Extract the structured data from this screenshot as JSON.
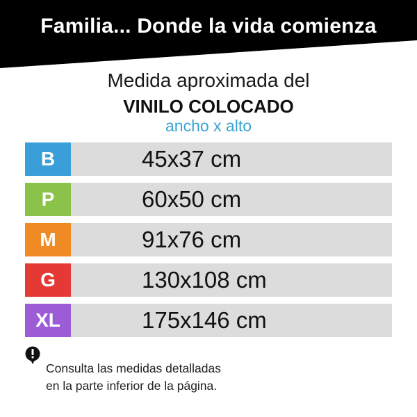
{
  "banner": {
    "title": "Familia... Donde la vida comienza",
    "color": "#000000"
  },
  "heading": {
    "line1": "Medida aproximada del",
    "line2": "VINILO COLOCADO",
    "line3": "ancho x alto",
    "line3_color": "#3aa3d6"
  },
  "sizes": [
    {
      "code": "B",
      "value": "45x37 cm",
      "color": "#3a9fd8"
    },
    {
      "code": "P",
      "value": "60x50 cm",
      "color": "#8bc34a"
    },
    {
      "code": "M",
      "value": "91x76 cm",
      "color": "#f08a24"
    },
    {
      "code": "G",
      "value": "130x108 cm",
      "color": "#e53935"
    },
    {
      "code": "XL",
      "value": "175x146 cm",
      "color": "#9c5cd6"
    }
  ],
  "note": {
    "icon": "info-icon",
    "line1": "Consulta las medidas detalladas",
    "line2": "en la parte inferior de la página."
  }
}
